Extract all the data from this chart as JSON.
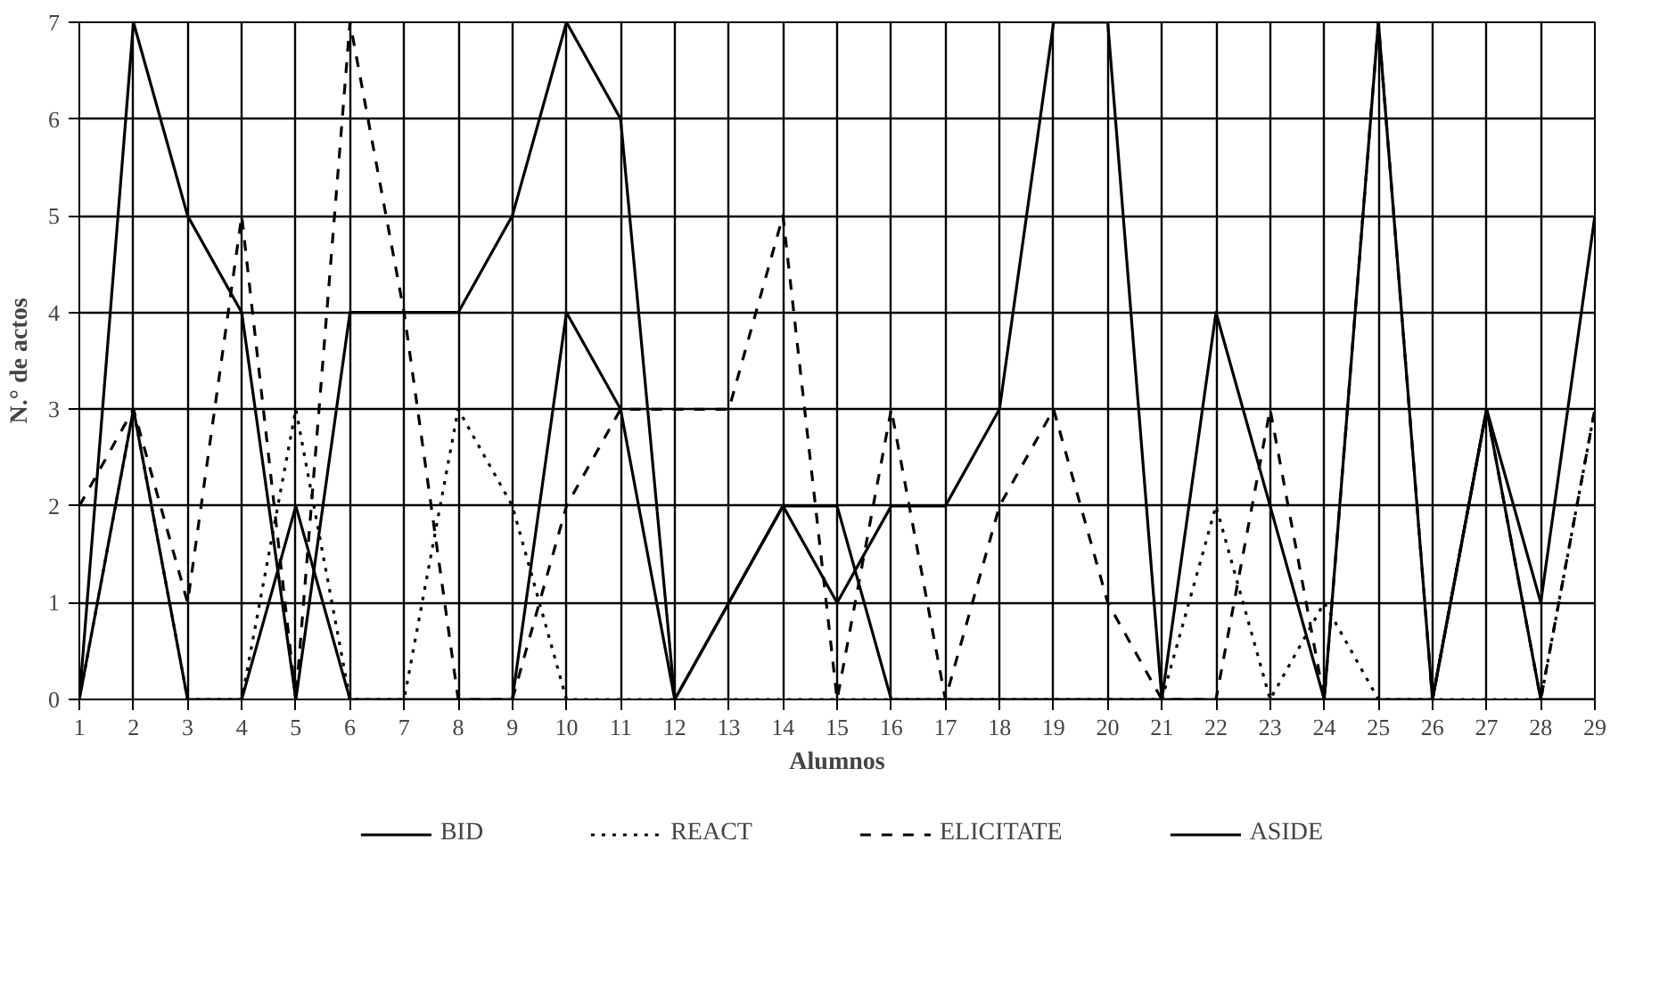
{
  "chart_data": {
    "type": "line",
    "xlabel": "Alumnos",
    "ylabel": "N.° de actos",
    "x": [
      1,
      2,
      3,
      4,
      5,
      6,
      7,
      8,
      9,
      10,
      11,
      12,
      13,
      14,
      15,
      16,
      17,
      18,
      19,
      20,
      21,
      22,
      23,
      24,
      25,
      26,
      27,
      28,
      29
    ],
    "xlim": [
      1,
      29
    ],
    "xticks": [
      1,
      2,
      3,
      4,
      5,
      6,
      7,
      8,
      9,
      10,
      11,
      12,
      13,
      14,
      15,
      16,
      17,
      18,
      19,
      20,
      21,
      22,
      23,
      24,
      25,
      26,
      27,
      28,
      29
    ],
    "ylim": [
      0,
      7
    ],
    "yticks": [
      0,
      1,
      2,
      3,
      4,
      5,
      6,
      7
    ],
    "grid": true,
    "legend": "bottom",
    "series": [
      {
        "name": "BID",
        "color": "#000000",
        "line_style": "solid",
        "values": [
          0,
          7,
          5,
          4,
          0,
          4,
          4,
          4,
          5,
          7,
          6,
          0,
          1,
          2,
          1,
          2,
          2,
          3,
          7,
          7,
          0,
          4,
          2,
          0,
          7,
          0,
          3,
          1,
          5
        ]
      },
      {
        "name": "REACT",
        "color": "#000000",
        "line_style": "dotted",
        "values": [
          0,
          3,
          0,
          0,
          3,
          0,
          0,
          3,
          2,
          0,
          0,
          0,
          0,
          0,
          0,
          0,
          0,
          0,
          0,
          0,
          0,
          2,
          0,
          1,
          0,
          0,
          0,
          0,
          3
        ]
      },
      {
        "name": "ELICITATE",
        "color": "#000000",
        "line_style": "dashed",
        "values": [
          2,
          3,
          1,
          5,
          0,
          7,
          4,
          0,
          0,
          2,
          3,
          3,
          3,
          5,
          0,
          3,
          0,
          2,
          3,
          1,
          0,
          0,
          3,
          0,
          7,
          0,
          3,
          0,
          3
        ]
      },
      {
        "name": "ASIDE",
        "color": "#000000",
        "line_style": "solid",
        "values": [
          0,
          3,
          0,
          0,
          2,
          0,
          0,
          0,
          0,
          4,
          3,
          0,
          1,
          2,
          2,
          0,
          0,
          0,
          0,
          0,
          0,
          0,
          0,
          0,
          0,
          0,
          3,
          0,
          0
        ]
      }
    ]
  }
}
